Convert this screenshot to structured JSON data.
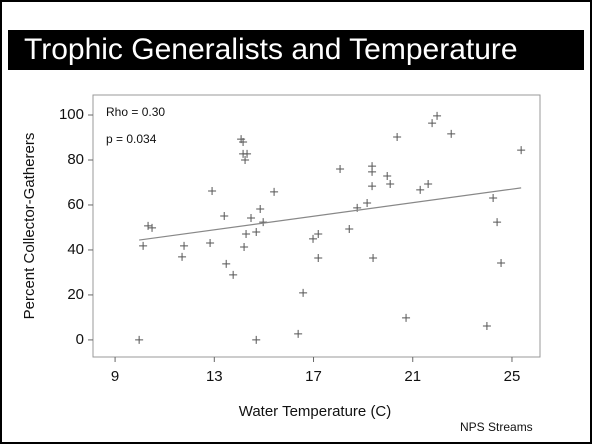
{
  "chart_data": {
    "type": "scatter",
    "title": "Trophic Generalists and Temperature",
    "xlabel": "Water Temperature (C)",
    "ylabel": "Percent Collector-Gatherers",
    "annotations": [
      "Rho = 0.30",
      "p = 0.034"
    ],
    "source": "NPS Streams",
    "color": "#555555",
    "xlim": [
      8.11,
      26.13
    ],
    "ylim": [
      -7.6,
      108.9
    ],
    "xticks": [
      9,
      13,
      17,
      21,
      25
    ],
    "yticks": [
      0,
      20,
      40,
      60,
      80,
      100
    ],
    "x": [
      9.97,
      10.13,
      10.33,
      10.49,
      11.7,
      11.78,
      12.83,
      12.91,
      13.4,
      13.48,
      13.76,
      14.08,
      14.16,
      14.16,
      14.32,
      14.24,
      14.2,
      14.28,
      14.48,
      14.69,
      14.85,
      14.97,
      14.69,
      15.41,
      16.38,
      16.58,
      16.98,
      17.19,
      17.19,
      18.07,
      18.44,
      18.76,
      19.16,
      19.36,
      19.36,
      19.36,
      19.4,
      19.97,
      20.09,
      20.37,
      20.73,
      21.3,
      21.62,
      21.78,
      21.98,
      22.55,
      24.24,
      24.4,
      24.56,
      23.99,
      25.37
    ],
    "values": [
      0,
      41.8,
      50.7,
      49.8,
      36.9,
      41.8,
      43.1,
      66.2,
      55.1,
      33.8,
      28.9,
      89.3,
      88,
      82.7,
      82.7,
      80,
      41.3,
      47.1,
      54.2,
      48,
      58.2,
      52.4,
      0,
      65.8,
      2.7,
      20.9,
      44.9,
      47.1,
      36.4,
      76,
      49.3,
      58.7,
      60.9,
      77.3,
      74.7,
      68.4,
      36.4,
      72.9,
      69.3,
      90.2,
      9.8,
      66.7,
      69.3,
      96.4,
      99.6,
      91.6,
      63.1,
      52.4,
      34.2,
      6.2,
      84.4
    ],
    "trend": {
      "x": [
        9.97,
        25.37
      ],
      "values": [
        44.4,
        67.6
      ],
      "color": "#888888"
    }
  }
}
